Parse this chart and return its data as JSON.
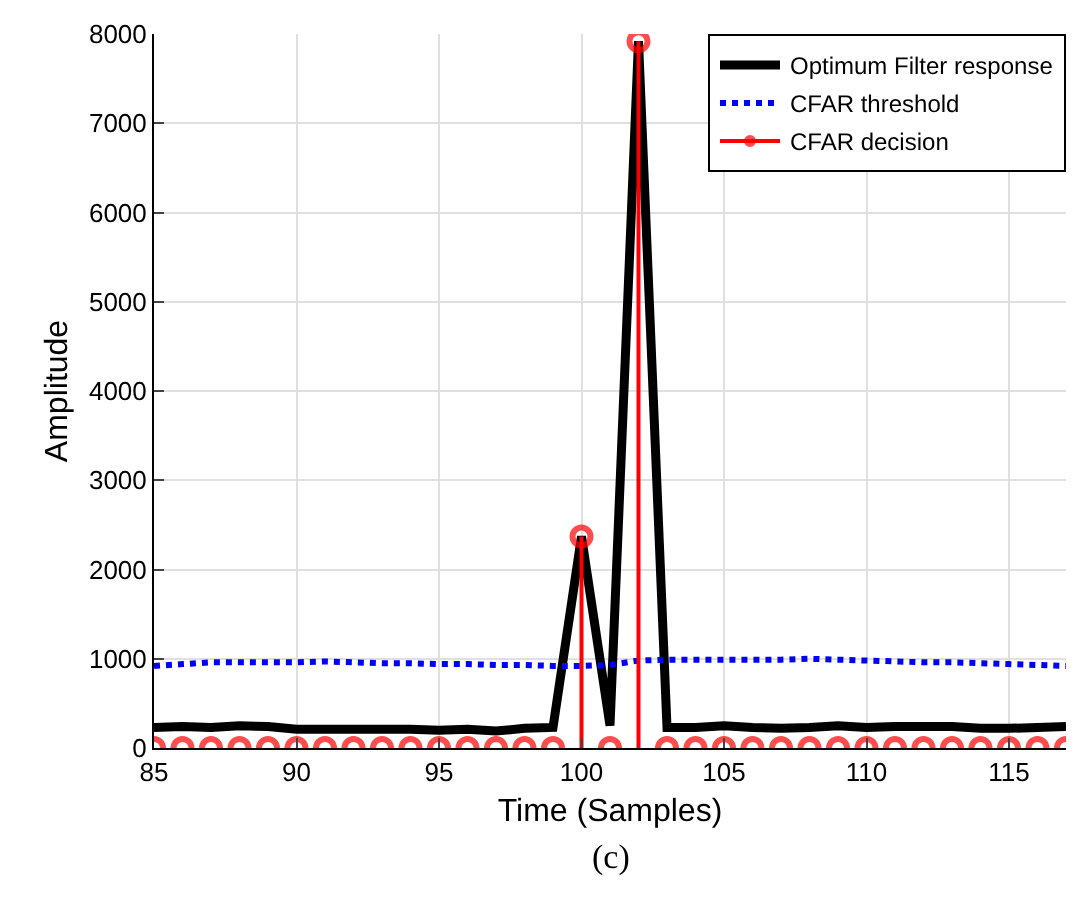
{
  "chart_data": {
    "type": "line",
    "xlabel": "Time (Samples)",
    "ylabel": "Amplitude",
    "annotations": [
      "(c)"
    ],
    "x": [
      85,
      86,
      87,
      88,
      89,
      90,
      91,
      92,
      93,
      94,
      95,
      96,
      97,
      98,
      99,
      100,
      101,
      102,
      103,
      104,
      105,
      106,
      107,
      108,
      109,
      110,
      111,
      112,
      113,
      114,
      115,
      116,
      117
    ],
    "xlim": [
      85,
      117
    ],
    "xticks": [
      85,
      90,
      95,
      100,
      105,
      110,
      115
    ],
    "ylim": [
      0,
      8000
    ],
    "yticks": [
      0,
      1000,
      2000,
      3000,
      4000,
      5000,
      6000,
      7000,
      8000
    ],
    "grid": true,
    "legend": "top right",
    "series": [
      {
        "name": "Optimum Filter response",
        "color": "#000000",
        "line_style": "solid",
        "values": [
          230,
          240,
          230,
          250,
          240,
          210,
          210,
          210,
          210,
          210,
          200,
          210,
          190,
          220,
          230,
          2370,
          250,
          7920,
          230,
          230,
          250,
          230,
          220,
          230,
          250,
          230,
          240,
          240,
          240,
          220,
          220,
          230,
          240
        ]
      },
      {
        "name": "CFAR threshold",
        "color": "#0000ff",
        "line_style": "dotted",
        "values": [
          920,
          940,
          960,
          960,
          960,
          960,
          970,
          960,
          950,
          950,
          940,
          940,
          930,
          930,
          920,
          920,
          930,
          980,
          990,
          990,
          990,
          990,
          990,
          1000,
          990,
          980,
          970,
          960,
          960,
          950,
          940,
          930,
          920
        ]
      },
      {
        "name": "CFAR decision",
        "type": "lollipop",
        "color": "#ff0000",
        "marker": "circle",
        "values": [
          0,
          0,
          0,
          0,
          0,
          0,
          0,
          0,
          0,
          0,
          0,
          0,
          0,
          0,
          0,
          2370,
          0,
          7920,
          0,
          0,
          0,
          0,
          0,
          0,
          0,
          0,
          0,
          0,
          0,
          0,
          0,
          0,
          0
        ]
      }
    ]
  }
}
